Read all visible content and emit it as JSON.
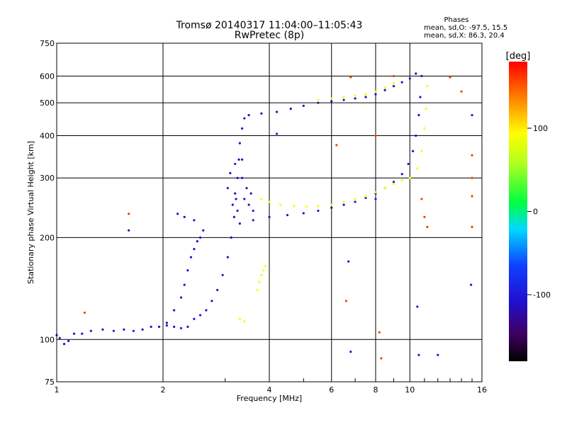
{
  "chart_data": {
    "type": "scatter",
    "title": "Tromsø 20140317 11:04:00–11:05:43",
    "subtitle": "RwPretec (8p)",
    "xlabel": "Frequency [MHz]",
    "ylabel": "Stationary phase Virtual Height [km]",
    "x_scale": "log",
    "y_scale": "log",
    "xlim": [
      1,
      16
    ],
    "ylim": [
      75,
      750
    ],
    "x_ticks": [
      1,
      2,
      4,
      6,
      8,
      10,
      16
    ],
    "x_tick_labels": [
      "1",
      "2",
      "4",
      "6",
      "8",
      "10",
      "16"
    ],
    "y_ticks": [
      75,
      100,
      200,
      300,
      400,
      500,
      600,
      750
    ],
    "y_tick_labels": [
      "75",
      "100",
      "200",
      "300",
      "400",
      "500",
      "600",
      "750"
    ],
    "grid": true,
    "phases_header": "Phases",
    "phases_lines": [
      "mean, sd,O: -97.5, 15.5",
      "mean, sd,X:  86.3, 20.4"
    ],
    "colorbar": {
      "label": "[deg]",
      "range": [
        -180,
        180
      ],
      "ticks": [
        100,
        0,
        -100
      ],
      "tick_labels": [
        "100",
        "0",
        "-100"
      ]
    },
    "series": [
      {
        "trace": "low-E",
        "phase": -105,
        "points": [
          [
            1.0,
            103
          ],
          [
            1.02,
            101
          ],
          [
            1.05,
            97
          ],
          [
            1.08,
            99
          ],
          [
            1.12,
            104
          ],
          [
            1.18,
            104
          ],
          [
            1.25,
            106
          ],
          [
            1.35,
            107
          ],
          [
            1.45,
            106
          ],
          [
            1.55,
            107
          ],
          [
            1.65,
            106
          ],
          [
            1.75,
            107
          ],
          [
            1.85,
            109
          ],
          [
            1.95,
            109
          ],
          [
            2.05,
            110
          ],
          [
            2.15,
            109
          ],
          [
            2.25,
            108
          ],
          [
            2.35,
            109
          ]
        ]
      },
      {
        "trace": "E-cusp",
        "phase": -110,
        "points": [
          [
            2.05,
            112
          ],
          [
            2.15,
            122
          ],
          [
            2.25,
            133
          ],
          [
            2.3,
            145
          ],
          [
            2.35,
            160
          ],
          [
            2.4,
            175
          ],
          [
            2.45,
            185
          ],
          [
            2.5,
            195
          ],
          [
            2.55,
            200
          ],
          [
            2.6,
            210
          ],
          [
            2.45,
            225
          ],
          [
            2.3,
            230
          ],
          [
            2.2,
            235
          ]
        ]
      },
      {
        "trace": "F1-O",
        "phase": -110,
        "points": [
          [
            2.45,
            115
          ],
          [
            2.55,
            118
          ],
          [
            2.65,
            122
          ],
          [
            2.75,
            130
          ],
          [
            2.85,
            140
          ],
          [
            2.95,
            155
          ],
          [
            3.05,
            175
          ],
          [
            3.12,
            200
          ],
          [
            3.18,
            230
          ],
          [
            3.22,
            260
          ],
          [
            3.25,
            300
          ],
          [
            3.28,
            340
          ],
          [
            3.3,
            380
          ],
          [
            3.35,
            420
          ],
          [
            3.4,
            450
          ],
          [
            3.5,
            460
          ],
          [
            3.8,
            465
          ],
          [
            4.2,
            470
          ],
          [
            4.6,
            480
          ],
          [
            5.0,
            490
          ],
          [
            5.5,
            500
          ],
          [
            6.0,
            505
          ],
          [
            6.5,
            510
          ],
          [
            7.0,
            515
          ],
          [
            7.5,
            520
          ],
          [
            8.0,
            530
          ],
          [
            8.5,
            545
          ],
          [
            9.0,
            560
          ],
          [
            9.5,
            575
          ],
          [
            10.0,
            590
          ],
          [
            10.4,
            610
          ]
        ]
      },
      {
        "trace": "F1-spread",
        "phase": -110,
        "points": [
          [
            3.05,
            280
          ],
          [
            3.1,
            310
          ],
          [
            3.15,
            250
          ],
          [
            3.2,
            270
          ],
          [
            3.25,
            240
          ],
          [
            3.35,
            300
          ],
          [
            3.4,
            260
          ],
          [
            3.45,
            280
          ],
          [
            3.5,
            250
          ],
          [
            3.55,
            270
          ],
          [
            3.3,
            220
          ],
          [
            3.6,
            240
          ],
          [
            3.2,
            330
          ],
          [
            3.35,
            340
          ]
        ]
      },
      {
        "trace": "F2-O",
        "phase": -110,
        "points": [
          [
            3.6,
            225
          ],
          [
            4.0,
            230
          ],
          [
            4.5,
            233
          ],
          [
            5.0,
            236
          ],
          [
            5.5,
            240
          ],
          [
            6.0,
            245
          ],
          [
            6.5,
            250
          ],
          [
            7.0,
            255
          ],
          [
            7.5,
            262
          ],
          [
            8.0,
            270
          ],
          [
            8.5,
            280
          ],
          [
            9.0,
            292
          ],
          [
            9.5,
            308
          ],
          [
            9.9,
            330
          ],
          [
            10.2,
            360
          ],
          [
            10.4,
            400
          ],
          [
            10.6,
            460
          ],
          [
            10.7,
            520
          ],
          [
            10.8,
            600
          ]
        ]
      },
      {
        "trace": "F2-X",
        "phase": 95,
        "points": [
          [
            3.8,
            260
          ],
          [
            4.0,
            255
          ],
          [
            4.3,
            250
          ],
          [
            4.7,
            248
          ],
          [
            5.1,
            247
          ],
          [
            5.5,
            248
          ],
          [
            6.0,
            250
          ],
          [
            6.5,
            255
          ],
          [
            7.0,
            260
          ],
          [
            7.5,
            265
          ],
          [
            8.0,
            272
          ],
          [
            8.5,
            280
          ],
          [
            9.0,
            288
          ],
          [
            9.5,
            295
          ],
          [
            10.0,
            300
          ],
          [
            10.5,
            320
          ],
          [
            10.8,
            360
          ],
          [
            11.0,
            420
          ],
          [
            11.1,
            480
          ],
          [
            11.2,
            560
          ]
        ]
      },
      {
        "trace": "F1-X",
        "phase": 95,
        "points": [
          [
            5.5,
            510
          ],
          [
            6.0,
            515
          ],
          [
            6.5,
            520
          ],
          [
            7.0,
            525
          ],
          [
            7.5,
            530
          ],
          [
            8.0,
            540
          ],
          [
            8.5,
            555
          ],
          [
            9.0,
            570
          ]
        ]
      },
      {
        "trace": "X-low",
        "phase": 95,
        "points": [
          [
            3.3,
            115
          ],
          [
            3.4,
            113
          ],
          [
            3.7,
            140
          ],
          [
            3.75,
            148
          ],
          [
            3.8,
            155
          ],
          [
            3.85,
            160
          ],
          [
            3.9,
            165
          ]
        ]
      },
      {
        "trace": "scattered",
        "phase": 160,
        "points": [
          [
            1.2,
            120
          ],
          [
            1.6,
            235
          ],
          [
            6.8,
            595
          ],
          [
            8.0,
            400
          ],
          [
            8.2,
            105
          ],
          [
            8.3,
            88
          ],
          [
            10.8,
            260
          ],
          [
            11.0,
            230
          ],
          [
            11.2,
            215
          ],
          [
            13.0,
            595
          ],
          [
            14.0,
            540
          ],
          [
            15.0,
            350
          ],
          [
            15.0,
            300
          ],
          [
            15.0,
            265
          ],
          [
            15.0,
            215
          ],
          [
            9.0,
            600
          ],
          [
            6.6,
            130
          ],
          [
            6.2,
            375
          ]
        ]
      },
      {
        "trace": "scattered-blue",
        "phase": -100,
        "points": [
          [
            1.6,
            210
          ],
          [
            6.7,
            170
          ],
          [
            6.8,
            92
          ],
          [
            8.0,
            260
          ],
          [
            10.5,
            125
          ],
          [
            10.6,
            90
          ],
          [
            12.0,
            90
          ],
          [
            14.9,
            145
          ],
          [
            15.0,
            460
          ],
          [
            4.2,
            405
          ]
        ]
      }
    ]
  }
}
